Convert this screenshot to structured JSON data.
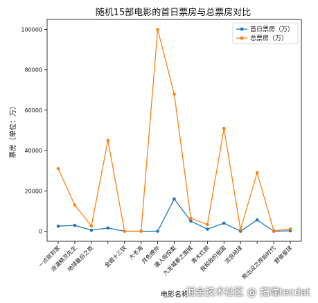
{
  "chart_data": {
    "type": "line",
    "title": "随机15部电影的首日票房与总票房对比",
    "xlabel": "电影名称",
    "ylabel": "票房（单位：万）",
    "categories": [
      "一点就到家",
      "浪漫精灵先生",
      "地球最后之夜",
      "神秘之物",
      "金银十三钗",
      "大冬海",
      "月色撩你",
      "唐人街探案",
      "九龙城寨之围城",
      "青木红颜",
      "我和我的祖国",
      "流浪地球",
      "失落的海洋",
      "熊出没之原始时代",
      "野兽星球"
    ],
    "tick_labels": [
      "一点就到家",
      "浪漫精灵先生",
      "地球最后之夜",
      "",
      "金银十三钗",
      "大冬海",
      "月色撩你",
      "唐人街探案",
      "九龙城寨之围城",
      "青木红颜",
      "我和我的祖国",
      "流浪地球",
      "",
      "熊出没之原始时代",
      "野兽星球"
    ],
    "series": [
      {
        "name": "首日票房（万）",
        "color": "#1f77b4",
        "values": [
          2500,
          2900,
          500,
          1600,
          0,
          0,
          0,
          16000,
          5000,
          1000,
          4000,
          0,
          5600,
          0,
          200
        ]
      },
      {
        "name": "总票房（万）",
        "color": "#ff7f0e",
        "values": [
          31000,
          13000,
          2600,
          45000,
          0,
          0,
          100000,
          68000,
          6400,
          3300,
          51000,
          800,
          29000,
          300,
          1100
        ]
      }
    ],
    "ylim": [
      -5000,
      105000
    ],
    "yticks": [
      0,
      20000,
      40000,
      60000,
      80000,
      100000
    ],
    "legend_position": "top-right",
    "grid": false
  },
  "watermark": "掘金技术社区 @ 拓端tecdat"
}
